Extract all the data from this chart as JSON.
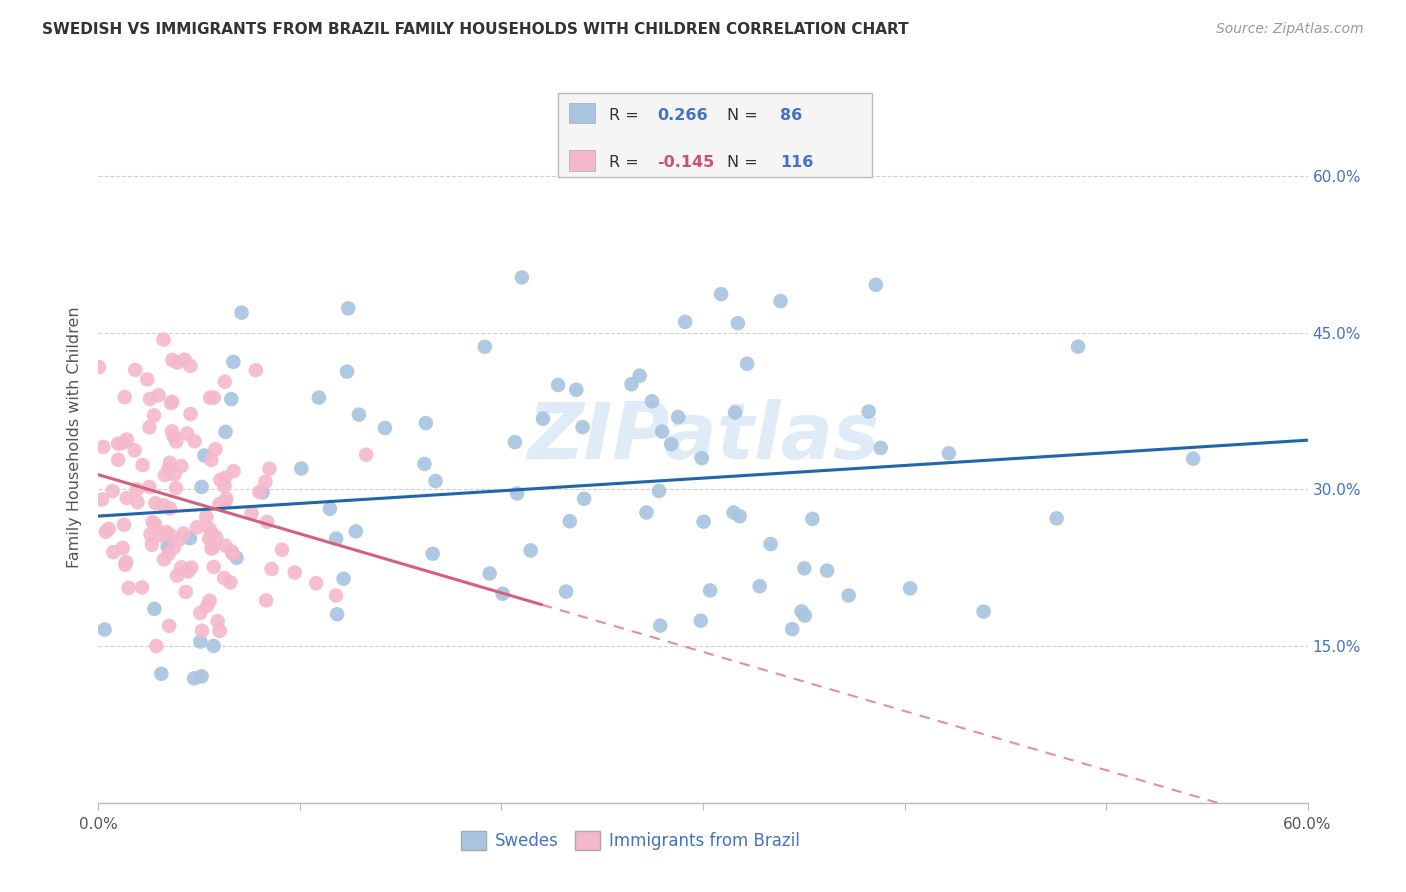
{
  "title": "SWEDISH VS IMMIGRANTS FROM BRAZIL FAMILY HOUSEHOLDS WITH CHILDREN CORRELATION CHART",
  "source": "Source: ZipAtlas.com",
  "ylabel": "Family Households with Children",
  "swede_color": "#a8c4e0",
  "brazil_color": "#f4b8ca",
  "swede_line_color": "#2166ac",
  "brazil_line_color": "#d46080",
  "swede_R": 0.266,
  "swede_N": 86,
  "brazil_R": -0.145,
  "brazil_N": 116,
  "watermark": "ZIPatlas",
  "background_color": "#ffffff",
  "grid_color": "#cccccc",
  "xlim": [
    0,
    0.6
  ],
  "ylim": [
    0,
    0.7
  ],
  "x_tick_vals": [
    0.0,
    0.1,
    0.2,
    0.3,
    0.4,
    0.5,
    0.6
  ],
  "y_tick_vals": [
    0.0,
    0.15,
    0.3,
    0.45,
    0.6
  ],
  "right_y_labels": [
    "",
    "15.0%",
    "30.0%",
    "45.0%",
    "60.0%"
  ],
  "x_edge_labels": [
    "0.0%",
    "60.0%"
  ],
  "bottom_legend_labels": [
    "Swedes",
    "Immigrants from Brazil"
  ],
  "stats_R1": "0.266",
  "stats_N1": "86",
  "stats_R2": "-0.145",
  "stats_N2": "116"
}
